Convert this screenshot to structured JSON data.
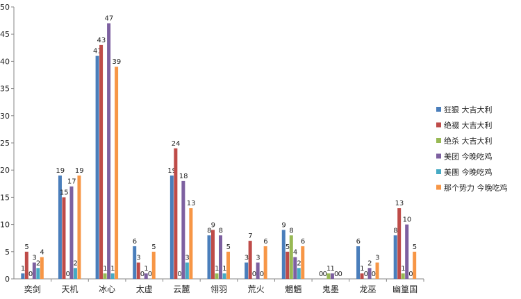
{
  "chart_data": {
    "type": "bar",
    "categories": [
      "奕剑",
      "天机",
      "冰心",
      "太虚",
      "云麓",
      "翎羽",
      "荒火",
      "魍魎",
      "鬼墨",
      "龙巫",
      "幽篁国"
    ],
    "series": [
      {
        "name": "狂狠 大吉大利",
        "color": "#4a7ebb",
        "values": [
          1,
          19,
          41,
          6,
          19,
          8,
          3,
          9,
          0,
          6,
          8
        ]
      },
      {
        "name": "绝裰 大吉大利",
        "color": "#be4b48",
        "values": [
          5,
          15,
          43,
          3,
          24,
          9,
          7,
          5,
          0,
          1,
          13
        ]
      },
      {
        "name": "绝杀 大吉大利",
        "color": "#98b954",
        "values": [
          0,
          0,
          1,
          0,
          0,
          1,
          0,
          8,
          1,
          0,
          1
        ]
      },
      {
        "name": "美团 今晚吃鸡",
        "color": "#7d60a0",
        "values": [
          3,
          17,
          47,
          1,
          18,
          8,
          3,
          4,
          1,
          2,
          10
        ]
      },
      {
        "name": "美團 今晚吃鸡",
        "color": "#46aac4",
        "values": [
          2,
          2,
          1,
          0,
          3,
          1,
          0,
          2,
          0,
          0,
          0
        ]
      },
      {
        "name": "那个势力 今晚吃鸡",
        "color": "#f79646",
        "values": [
          4,
          19,
          39,
          5,
          13,
          5,
          6,
          6,
          0,
          3,
          5
        ]
      }
    ],
    "ylim": [
      0,
      50
    ],
    "yticks": [
      0,
      5,
      10,
      15,
      20,
      25,
      30,
      35,
      40,
      45,
      50
    ],
    "grid": false,
    "legend_position": "right"
  }
}
